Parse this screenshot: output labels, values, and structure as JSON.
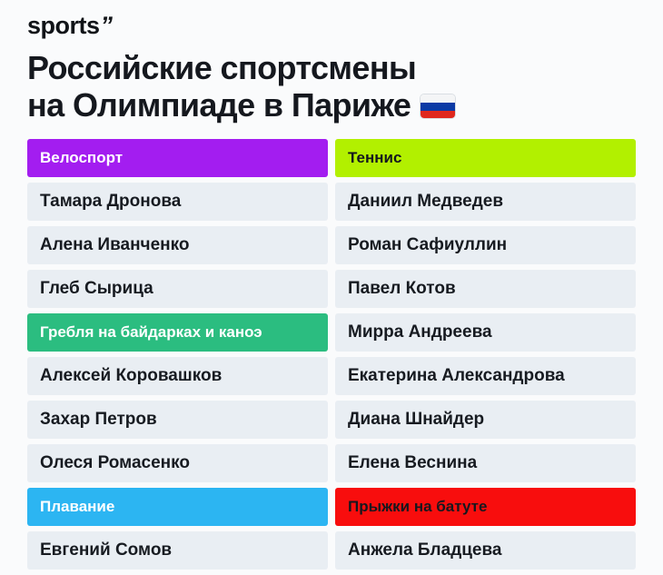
{
  "logo": {
    "text": "sports",
    "mark": "”"
  },
  "title": {
    "line1": "Российские спортсмены",
    "line2": "на Олимпиаде в Париже"
  },
  "flag_icon": {
    "name": "russia-flag",
    "white": "#f4f5f6",
    "blue": "#0b3aa5",
    "red": "#e0281e"
  },
  "table": {
    "columns": [
      {
        "groups": [
          0,
          1,
          2
        ]
      },
      {
        "groups": [
          3,
          4
        ]
      }
    ],
    "row_background": "#e9eef3",
    "text_color": "#171b21"
  },
  "chart_data": {
    "type": "table",
    "title": "Российские спортсмены на Олимпиаде в Париже",
    "groups": [
      {
        "category": "Велоспорт",
        "bg": "#a31df0",
        "text_color": "#ffffff",
        "athletes": [
          "Тамара Дронова",
          "Алена Иванченко",
          "Глеб Сырица"
        ]
      },
      {
        "category": "Гребля на байдарках и каноэ",
        "bg": "#2bbd80",
        "text_color": "#ffffff",
        "athletes": [
          "Алексей Коровашков",
          "Захар Петров",
          "Олеся Ромасенко"
        ]
      },
      {
        "category": "Плавание",
        "bg": "#2cb5f2",
        "text_color": "#ffffff",
        "athletes": [
          "Евгений Сомов"
        ]
      },
      {
        "category": "Теннис",
        "bg": "#b2f000",
        "text_color": "#15181e",
        "athletes": [
          "Даниил Медведев",
          "Роман Сафиуллин",
          "Павел Котов",
          "Мирра Андреева",
          "Екатерина Александрова",
          "Диана Шнайдер",
          "Елена Веснина"
        ]
      },
      {
        "category": "Прыжки на батуте",
        "bg": "#f80d0d",
        "text_color": "#15181e",
        "athletes": [
          "Анжела Бладцева"
        ]
      }
    ]
  }
}
